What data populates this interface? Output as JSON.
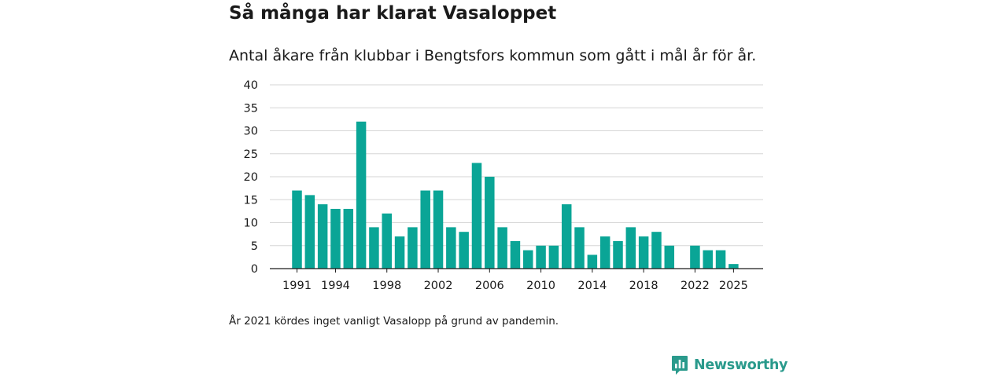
{
  "header": {
    "title": "Så många har klarat Vasaloppet",
    "subtitle": "Antal åkare från klubbar i Bengtsfors kommun som gått i mål år för år."
  },
  "footnote": "År 2021 kördes inget vanligt Vasalopp på grund av pandemin.",
  "brand": {
    "name": "Newsworthy",
    "icon": "newsworthy-logo-icon",
    "color": "#2a9a8c"
  },
  "chart_data": {
    "type": "bar",
    "title": "Så många har klarat Vasaloppet",
    "xlabel": "",
    "ylabel": "",
    "ylim": [
      0,
      40
    ],
    "yticks": [
      0,
      5,
      10,
      15,
      20,
      25,
      30,
      35,
      40
    ],
    "xtick_labels": [
      "1991",
      "1994",
      "1998",
      "2002",
      "2006",
      "2010",
      "2014",
      "2018",
      "2022",
      "2025"
    ],
    "grid": true,
    "bar_color": "#0aa596",
    "categories": [
      "1991",
      "1992",
      "1993",
      "1994",
      "1995",
      "1996",
      "1997",
      "1998",
      "1999",
      "2000",
      "2001",
      "2002",
      "2003",
      "2004",
      "2005",
      "2006",
      "2007",
      "2008",
      "2009",
      "2010",
      "2011",
      "2012",
      "2013",
      "2014",
      "2015",
      "2016",
      "2017",
      "2018",
      "2019",
      "2020",
      "2021",
      "2022",
      "2023",
      "2024",
      "2025"
    ],
    "values": [
      17,
      16,
      14,
      13,
      13,
      32,
      9,
      12,
      7,
      9,
      17,
      17,
      9,
      8,
      23,
      20,
      9,
      6,
      4,
      5,
      5,
      14,
      9,
      3,
      7,
      6,
      9,
      7,
      8,
      5,
      null,
      5,
      4,
      4,
      1
    ]
  }
}
